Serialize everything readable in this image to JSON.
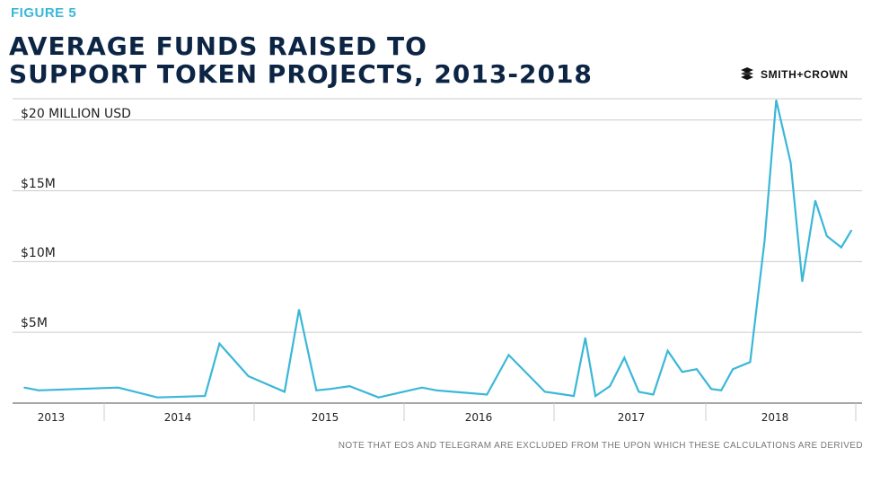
{
  "header": {
    "figure_label": "FIGURE 5",
    "title_line1": "AVERAGE FUNDS RAISED TO",
    "title_line2": "SUPPORT TOKEN PROJECTS, 2013-2018",
    "brand": "SMITH+CROWN"
  },
  "note": "NOTE THAT EOS AND TELEGRAM ARE EXCLUDED FROM THE UPON WHICH THESE CALCULATIONS ARE DERIVED",
  "colors": {
    "line": "#3ab7d8",
    "title": "#0d2544",
    "grid": "#cccccc",
    "axis": "#8a8a8a"
  },
  "chart_data": {
    "type": "line",
    "title": "AVERAGE FUNDS RAISED TO SUPPORT TOKEN PROJECTS, 2013-2018",
    "ylabel": "",
    "y_tick_values": [
      5,
      10,
      15,
      20
    ],
    "y_tick_labels": [
      "$5M",
      "$10M",
      "$15M",
      "$20 MILLION USD"
    ],
    "x_tick_labels": [
      "2013",
      "2014",
      "2015",
      "2016",
      "2017",
      "2018"
    ],
    "xlim": [
      2013.0,
      2018.75
    ],
    "ylim": [
      0,
      21.5
    ],
    "grid": true,
    "series": [
      {
        "x": [
          2013.0,
          2013.1,
          2013.65,
          2013.92,
          2014.25,
          2014.35,
          2014.55,
          2014.8,
          2014.9,
          2015.02,
          2015.12,
          2015.25,
          2015.45,
          2015.75,
          2015.85,
          2016.2,
          2016.35,
          2016.6,
          2016.8,
          2016.88,
          2016.95,
          2017.05,
          2017.15,
          2017.25,
          2017.35,
          2017.45,
          2017.55,
          2017.65,
          2017.75,
          2017.82,
          2017.9,
          2018.02,
          2018.12,
          2018.2,
          2018.3,
          2018.38,
          2018.47,
          2018.55,
          2018.65,
          2018.72
        ],
        "y": [
          1.1,
          0.9,
          1.1,
          0.4,
          0.5,
          4.2,
          1.9,
          0.8,
          6.6,
          0.9,
          1.0,
          1.2,
          0.4,
          1.1,
          0.9,
          0.6,
          3.4,
          0.8,
          0.5,
          4.6,
          0.5,
          1.2,
          3.2,
          0.8,
          0.6,
          3.7,
          2.2,
          2.4,
          1.0,
          0.9,
          2.4,
          2.9,
          11.5,
          21.4,
          17.0,
          8.6,
          14.3,
          11.8,
          11.0,
          12.2
        ]
      }
    ]
  }
}
